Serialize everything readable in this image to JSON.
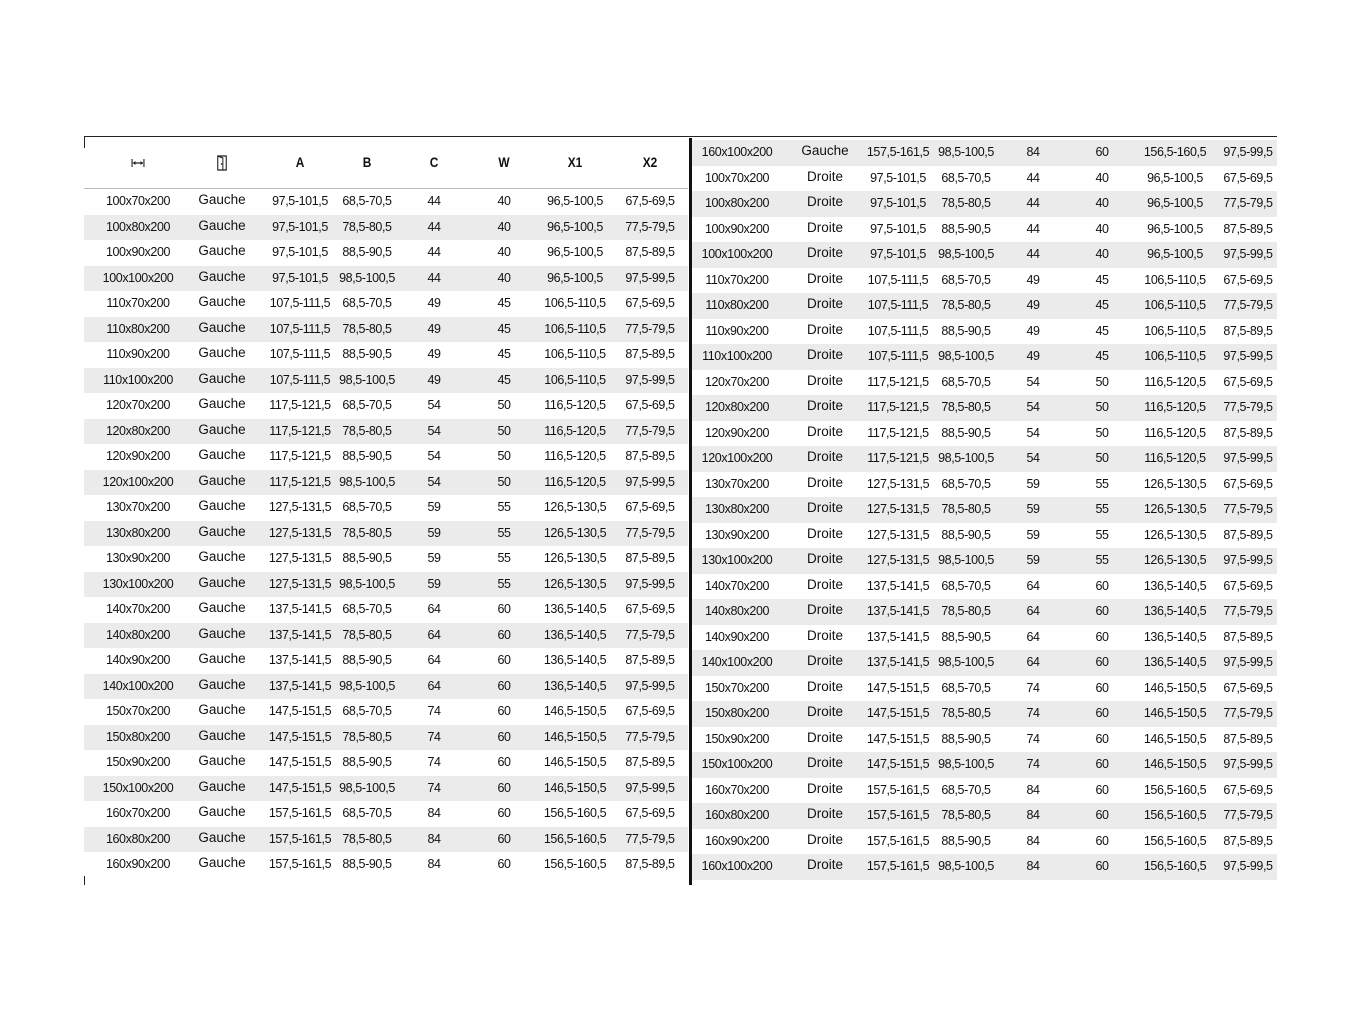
{
  "headers": {
    "dims_icon": "width-arrows-icon",
    "side_icon": "door-icon",
    "cols": [
      "A",
      "B",
      "C",
      "W",
      "X1",
      "X2"
    ]
  },
  "left_rows": [
    [
      "100x70x200",
      "Gauche",
      "97,5-101,5",
      "68,5-70,5",
      "44",
      "40",
      "96,5-100,5",
      "67,5-69,5"
    ],
    [
      "100x80x200",
      "Gauche",
      "97,5-101,5",
      "78,5-80,5",
      "44",
      "40",
      "96,5-100,5",
      "77,5-79,5"
    ],
    [
      "100x90x200",
      "Gauche",
      "97,5-101,5",
      "88,5-90,5",
      "44",
      "40",
      "96,5-100,5",
      "87,5-89,5"
    ],
    [
      "100x100x200",
      "Gauche",
      "97,5-101,5",
      "98,5-100,5",
      "44",
      "40",
      "96,5-100,5",
      "97,5-99,5"
    ],
    [
      "110x70x200",
      "Gauche",
      "107,5-111,5",
      "68,5-70,5",
      "49",
      "45",
      "106,5-110,5",
      "67,5-69,5"
    ],
    [
      "110x80x200",
      "Gauche",
      "107,5-111,5",
      "78,5-80,5",
      "49",
      "45",
      "106,5-110,5",
      "77,5-79,5"
    ],
    [
      "110x90x200",
      "Gauche",
      "107,5-111,5",
      "88,5-90,5",
      "49",
      "45",
      "106,5-110,5",
      "87,5-89,5"
    ],
    [
      "110x100x200",
      "Gauche",
      "107,5-111,5",
      "98,5-100,5",
      "49",
      "45",
      "106,5-110,5",
      "97,5-99,5"
    ],
    [
      "120x70x200",
      "Gauche",
      "117,5-121,5",
      "68,5-70,5",
      "54",
      "50",
      "116,5-120,5",
      "67,5-69,5"
    ],
    [
      "120x80x200",
      "Gauche",
      "117,5-121,5",
      "78,5-80,5",
      "54",
      "50",
      "116,5-120,5",
      "77,5-79,5"
    ],
    [
      "120x90x200",
      "Gauche",
      "117,5-121,5",
      "88,5-90,5",
      "54",
      "50",
      "116,5-120,5",
      "87,5-89,5"
    ],
    [
      "120x100x200",
      "Gauche",
      "117,5-121,5",
      "98,5-100,5",
      "54",
      "50",
      "116,5-120,5",
      "97,5-99,5"
    ],
    [
      "130x70x200",
      "Gauche",
      "127,5-131,5",
      "68,5-70,5",
      "59",
      "55",
      "126,5-130,5",
      "67,5-69,5"
    ],
    [
      "130x80x200",
      "Gauche",
      "127,5-131,5",
      "78,5-80,5",
      "59",
      "55",
      "126,5-130,5",
      "77,5-79,5"
    ],
    [
      "130x90x200",
      "Gauche",
      "127,5-131,5",
      "88,5-90,5",
      "59",
      "55",
      "126,5-130,5",
      "87,5-89,5"
    ],
    [
      "130x100x200",
      "Gauche",
      "127,5-131,5",
      "98,5-100,5",
      "59",
      "55",
      "126,5-130,5",
      "97,5-99,5"
    ],
    [
      "140x70x200",
      "Gauche",
      "137,5-141,5",
      "68,5-70,5",
      "64",
      "60",
      "136,5-140,5",
      "67,5-69,5"
    ],
    [
      "140x80x200",
      "Gauche",
      "137,5-141,5",
      "78,5-80,5",
      "64",
      "60",
      "136,5-140,5",
      "77,5-79,5"
    ],
    [
      "140x90x200",
      "Gauche",
      "137,5-141,5",
      "88,5-90,5",
      "64",
      "60",
      "136,5-140,5",
      "87,5-89,5"
    ],
    [
      "140x100x200",
      "Gauche",
      "137,5-141,5",
      "98,5-100,5",
      "64",
      "60",
      "136,5-140,5",
      "97,5-99,5"
    ],
    [
      "150x70x200",
      "Gauche",
      "147,5-151,5",
      "68,5-70,5",
      "74",
      "60",
      "146,5-150,5",
      "67,5-69,5"
    ],
    [
      "150x80x200",
      "Gauche",
      "147,5-151,5",
      "78,5-80,5",
      "74",
      "60",
      "146,5-150,5",
      "77,5-79,5"
    ],
    [
      "150x90x200",
      "Gauche",
      "147,5-151,5",
      "88,5-90,5",
      "74",
      "60",
      "146,5-150,5",
      "87,5-89,5"
    ],
    [
      "150x100x200",
      "Gauche",
      "147,5-151,5",
      "98,5-100,5",
      "74",
      "60",
      "146,5-150,5",
      "97,5-99,5"
    ],
    [
      "160x70x200",
      "Gauche",
      "157,5-161,5",
      "68,5-70,5",
      "84",
      "60",
      "156,5-160,5",
      "67,5-69,5"
    ],
    [
      "160x80x200",
      "Gauche",
      "157,5-161,5",
      "78,5-80,5",
      "84",
      "60",
      "156,5-160,5",
      "77,5-79,5"
    ],
    [
      "160x90x200",
      "Gauche",
      "157,5-161,5",
      "88,5-90,5",
      "84",
      "60",
      "156,5-160,5",
      "87,5-89,5"
    ]
  ],
  "right_rows": [
    [
      "160x100x200",
      "Gauche",
      "157,5-161,5",
      "98,5-100,5",
      "84",
      "60",
      "156,5-160,5",
      "97,5-99,5"
    ],
    [
      "100x70x200",
      "Droite",
      "97,5-101,5",
      "68,5-70,5",
      "44",
      "40",
      "96,5-100,5",
      "67,5-69,5"
    ],
    [
      "100x80x200",
      "Droite",
      "97,5-101,5",
      "78,5-80,5",
      "44",
      "40",
      "96,5-100,5",
      "77,5-79,5"
    ],
    [
      "100x90x200",
      "Droite",
      "97,5-101,5",
      "88,5-90,5",
      "44",
      "40",
      "96,5-100,5",
      "87,5-89,5"
    ],
    [
      "100x100x200",
      "Droite",
      "97,5-101,5",
      "98,5-100,5",
      "44",
      "40",
      "96,5-100,5",
      "97,5-99,5"
    ],
    [
      "110x70x200",
      "Droite",
      "107,5-111,5",
      "68,5-70,5",
      "49",
      "45",
      "106,5-110,5",
      "67,5-69,5"
    ],
    [
      "110x80x200",
      "Droite",
      "107,5-111,5",
      "78,5-80,5",
      "49",
      "45",
      "106,5-110,5",
      "77,5-79,5"
    ],
    [
      "110x90x200",
      "Droite",
      "107,5-111,5",
      "88,5-90,5",
      "49",
      "45",
      "106,5-110,5",
      "87,5-89,5"
    ],
    [
      "110x100x200",
      "Droite",
      "107,5-111,5",
      "98,5-100,5",
      "49",
      "45",
      "106,5-110,5",
      "97,5-99,5"
    ],
    [
      "120x70x200",
      "Droite",
      "117,5-121,5",
      "68,5-70,5",
      "54",
      "50",
      "116,5-120,5",
      "67,5-69,5"
    ],
    [
      "120x80x200",
      "Droite",
      "117,5-121,5",
      "78,5-80,5",
      "54",
      "50",
      "116,5-120,5",
      "77,5-79,5"
    ],
    [
      "120x90x200",
      "Droite",
      "117,5-121,5",
      "88,5-90,5",
      "54",
      "50",
      "116,5-120,5",
      "87,5-89,5"
    ],
    [
      "120x100x200",
      "Droite",
      "117,5-121,5",
      "98,5-100,5",
      "54",
      "50",
      "116,5-120,5",
      "97,5-99,5"
    ],
    [
      "130x70x200",
      "Droite",
      "127,5-131,5",
      "68,5-70,5",
      "59",
      "55",
      "126,5-130,5",
      "67,5-69,5"
    ],
    [
      "130x80x200",
      "Droite",
      "127,5-131,5",
      "78,5-80,5",
      "59",
      "55",
      "126,5-130,5",
      "77,5-79,5"
    ],
    [
      "130x90x200",
      "Droite",
      "127,5-131,5",
      "88,5-90,5",
      "59",
      "55",
      "126,5-130,5",
      "87,5-89,5"
    ],
    [
      "130x100x200",
      "Droite",
      "127,5-131,5",
      "98,5-100,5",
      "59",
      "55",
      "126,5-130,5",
      "97,5-99,5"
    ],
    [
      "140x70x200",
      "Droite",
      "137,5-141,5",
      "68,5-70,5",
      "64",
      "60",
      "136,5-140,5",
      "67,5-69,5"
    ],
    [
      "140x80x200",
      "Droite",
      "137,5-141,5",
      "78,5-80,5",
      "64",
      "60",
      "136,5-140,5",
      "77,5-79,5"
    ],
    [
      "140x90x200",
      "Droite",
      "137,5-141,5",
      "88,5-90,5",
      "64",
      "60",
      "136,5-140,5",
      "87,5-89,5"
    ],
    [
      "140x100x200",
      "Droite",
      "137,5-141,5",
      "98,5-100,5",
      "64",
      "60",
      "136,5-140,5",
      "97,5-99,5"
    ],
    [
      "150x70x200",
      "Droite",
      "147,5-151,5",
      "68,5-70,5",
      "74",
      "60",
      "146,5-150,5",
      "67,5-69,5"
    ],
    [
      "150x80x200",
      "Droite",
      "147,5-151,5",
      "78,5-80,5",
      "74",
      "60",
      "146,5-150,5",
      "77,5-79,5"
    ],
    [
      "150x90x200",
      "Droite",
      "147,5-151,5",
      "88,5-90,5",
      "74",
      "60",
      "146,5-150,5",
      "87,5-89,5"
    ],
    [
      "150x100x200",
      "Droite",
      "147,5-151,5",
      "98,5-100,5",
      "74",
      "60",
      "146,5-150,5",
      "97,5-99,5"
    ],
    [
      "160x70x200",
      "Droite",
      "157,5-161,5",
      "68,5-70,5",
      "84",
      "60",
      "156,5-160,5",
      "67,5-69,5"
    ],
    [
      "160x80x200",
      "Droite",
      "157,5-161,5",
      "78,5-80,5",
      "84",
      "60",
      "156,5-160,5",
      "77,5-79,5"
    ],
    [
      "160x90x200",
      "Droite",
      "157,5-161,5",
      "88,5-90,5",
      "84",
      "60",
      "156,5-160,5",
      "87,5-89,5"
    ],
    [
      "160x100x200",
      "Droite",
      "157,5-161,5",
      "98,5-100,5",
      "84",
      "60",
      "156,5-160,5",
      "97,5-99,5"
    ]
  ],
  "colors": {
    "stripe": "#ebebeb",
    "rule": "#111111"
  }
}
